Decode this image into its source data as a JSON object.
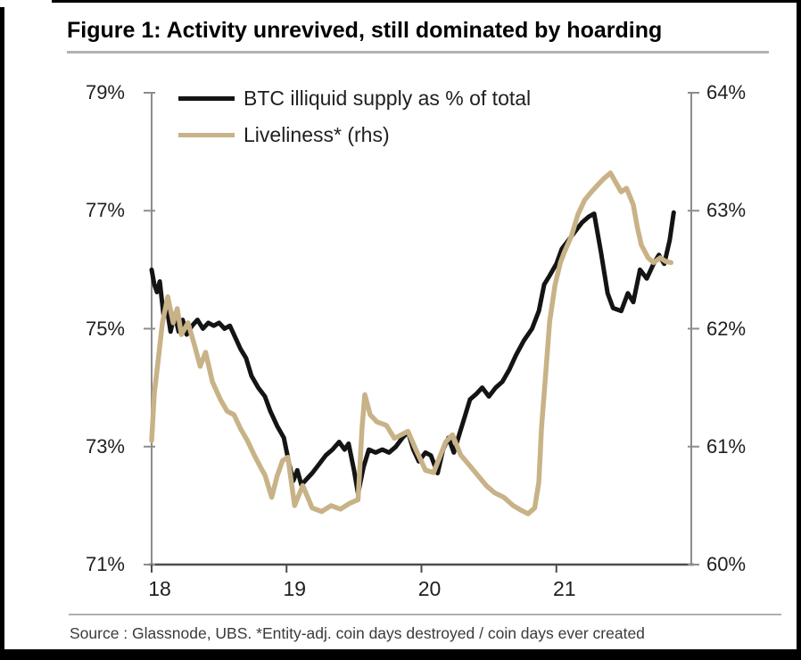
{
  "figure": {
    "title": "Figure 1: Activity unrevived, still dominated by hoarding",
    "source_note": "Source : Glassnode, UBS. *Entity-adj. coin days destroyed / coin days ever created"
  },
  "colors": {
    "series_illiquid": "#141414",
    "series_liveliness": "#c8b287",
    "axis": "#8c8c8c",
    "axis_bottom": "#4d4d4d",
    "text": "#1f1f1f"
  },
  "chart_data": {
    "type": "line",
    "title": "Figure 1: Activity unrevived, still dominated by hoarding",
    "xlabel": "",
    "ylabel_left": "BTC illiquid supply as % of total",
    "ylabel_right": "Liveliness* (rhs)",
    "xlim": [
      2018,
      2022
    ],
    "ylim_left": [
      71,
      79
    ],
    "ylim_right": [
      60,
      64
    ],
    "grid": false,
    "legend_position": "top-left",
    "x_axis": {
      "ticks": [
        {
          "label": "18",
          "value": 2018
        },
        {
          "label": "19",
          "value": 2019
        },
        {
          "label": "20",
          "value": 2020
        },
        {
          "label": "21",
          "value": 2021
        }
      ]
    },
    "y_axis_left": {
      "ticks": [
        {
          "label": "79%",
          "value": 79
        },
        {
          "label": "77%",
          "value": 77
        },
        {
          "label": "75%",
          "value": 75
        },
        {
          "label": "73%",
          "value": 73
        },
        {
          "label": "71%",
          "value": 71
        }
      ]
    },
    "y_axis_right": {
      "ticks": [
        {
          "label": "64%",
          "value": 64
        },
        {
          "label": "63%",
          "value": 63
        },
        {
          "label": "62%",
          "value": 62
        },
        {
          "label": "61%",
          "value": 61
        },
        {
          "label": "60%",
          "value": 60
        }
      ]
    },
    "series": [
      {
        "name": "BTC illiquid supply as % of total",
        "axis": "left",
        "color": "#141414",
        "points": [
          [
            2018.0,
            76.0
          ],
          [
            2018.02,
            75.75
          ],
          [
            2018.04,
            75.62
          ],
          [
            2018.06,
            75.8
          ],
          [
            2018.09,
            75.2
          ],
          [
            2018.11,
            75.4
          ],
          [
            2018.14,
            74.95
          ],
          [
            2018.17,
            75.25
          ],
          [
            2018.2,
            74.95
          ],
          [
            2018.23,
            75.15
          ],
          [
            2018.26,
            74.9
          ],
          [
            2018.3,
            75.05
          ],
          [
            2018.34,
            75.15
          ],
          [
            2018.38,
            75.0
          ],
          [
            2018.42,
            75.1
          ],
          [
            2018.46,
            75.05
          ],
          [
            2018.5,
            75.1
          ],
          [
            2018.54,
            75.0
          ],
          [
            2018.58,
            75.05
          ],
          [
            2018.62,
            74.85
          ],
          [
            2018.66,
            74.65
          ],
          [
            2018.7,
            74.5
          ],
          [
            2018.74,
            74.2
          ],
          [
            2018.79,
            74.0
          ],
          [
            2018.84,
            73.85
          ],
          [
            2018.88,
            73.6
          ],
          [
            2018.93,
            73.35
          ],
          [
            2018.98,
            73.15
          ],
          [
            2019.02,
            72.7
          ],
          [
            2019.05,
            72.42
          ],
          [
            2019.08,
            72.6
          ],
          [
            2019.11,
            72.35
          ],
          [
            2019.15,
            72.45
          ],
          [
            2019.19,
            72.55
          ],
          [
            2019.24,
            72.7
          ],
          [
            2019.29,
            72.85
          ],
          [
            2019.34,
            72.95
          ],
          [
            2019.39,
            73.08
          ],
          [
            2019.43,
            72.95
          ],
          [
            2019.46,
            73.05
          ],
          [
            2019.5,
            72.6
          ],
          [
            2019.53,
            72.2
          ],
          [
            2019.57,
            72.65
          ],
          [
            2019.61,
            72.95
          ],
          [
            2019.66,
            72.9
          ],
          [
            2019.71,
            72.95
          ],
          [
            2019.76,
            72.9
          ],
          [
            2019.81,
            73.0
          ],
          [
            2019.86,
            73.15
          ],
          [
            2019.9,
            73.25
          ],
          [
            2019.94,
            72.95
          ],
          [
            2019.98,
            72.75
          ],
          [
            2020.03,
            72.9
          ],
          [
            2020.07,
            72.85
          ],
          [
            2020.12,
            72.55
          ],
          [
            2020.16,
            72.95
          ],
          [
            2020.2,
            73.15
          ],
          [
            2020.24,
            72.9
          ],
          [
            2020.28,
            73.2
          ],
          [
            2020.32,
            73.5
          ],
          [
            2020.36,
            73.8
          ],
          [
            2020.41,
            73.9
          ],
          [
            2020.45,
            74.0
          ],
          [
            2020.5,
            73.85
          ],
          [
            2020.55,
            74.0
          ],
          [
            2020.6,
            74.1
          ],
          [
            2020.65,
            74.3
          ],
          [
            2020.7,
            74.55
          ],
          [
            2020.76,
            74.8
          ],
          [
            2020.82,
            75.0
          ],
          [
            2020.87,
            75.3
          ],
          [
            2020.91,
            75.75
          ],
          [
            2020.95,
            75.9
          ],
          [
            2021.0,
            76.1
          ],
          [
            2021.04,
            76.35
          ],
          [
            2021.09,
            76.5
          ],
          [
            2021.14,
            76.65
          ],
          [
            2021.19,
            76.8
          ],
          [
            2021.24,
            76.9
          ],
          [
            2021.28,
            76.95
          ],
          [
            2021.33,
            76.3
          ],
          [
            2021.38,
            75.6
          ],
          [
            2021.42,
            75.35
          ],
          [
            2021.48,
            75.3
          ],
          [
            2021.53,
            75.6
          ],
          [
            2021.57,
            75.45
          ],
          [
            2021.62,
            76.0
          ],
          [
            2021.67,
            75.85
          ],
          [
            2021.72,
            76.1
          ],
          [
            2021.76,
            76.25
          ],
          [
            2021.8,
            76.1
          ],
          [
            2021.84,
            76.5
          ],
          [
            2021.87,
            76.97
          ]
        ]
      },
      {
        "name": "Liveliness* (rhs)",
        "axis": "right",
        "color": "#c8b287",
        "points": [
          [
            2018.0,
            61.05
          ],
          [
            2018.02,
            61.45
          ],
          [
            2018.05,
            61.75
          ],
          [
            2018.08,
            62.05
          ],
          [
            2018.12,
            62.27
          ],
          [
            2018.16,
            62.05
          ],
          [
            2018.19,
            62.17
          ],
          [
            2018.22,
            61.95
          ],
          [
            2018.27,
            62.05
          ],
          [
            2018.32,
            61.85
          ],
          [
            2018.36,
            61.68
          ],
          [
            2018.4,
            61.8
          ],
          [
            2018.45,
            61.55
          ],
          [
            2018.51,
            61.4
          ],
          [
            2018.56,
            61.3
          ],
          [
            2018.61,
            61.27
          ],
          [
            2018.66,
            61.15
          ],
          [
            2018.71,
            61.05
          ],
          [
            2018.76,
            60.93
          ],
          [
            2018.81,
            60.82
          ],
          [
            2018.84,
            60.76
          ],
          [
            2018.89,
            60.57
          ],
          [
            2018.93,
            60.75
          ],
          [
            2018.97,
            60.88
          ],
          [
            2019.01,
            60.91
          ],
          [
            2019.06,
            60.5
          ],
          [
            2019.12,
            60.67
          ],
          [
            2019.19,
            60.48
          ],
          [
            2019.26,
            60.45
          ],
          [
            2019.33,
            60.5
          ],
          [
            2019.4,
            60.47
          ],
          [
            2019.47,
            60.52
          ],
          [
            2019.53,
            60.55
          ],
          [
            2019.56,
            61.16
          ],
          [
            2019.58,
            61.44
          ],
          [
            2019.62,
            61.27
          ],
          [
            2019.67,
            61.21
          ],
          [
            2019.74,
            61.18
          ],
          [
            2019.8,
            61.07
          ],
          [
            2019.85,
            61.1
          ],
          [
            2019.9,
            61.13
          ],
          [
            2019.96,
            60.97
          ],
          [
            2020.03,
            60.8
          ],
          [
            2020.09,
            60.78
          ],
          [
            2020.18,
            61.04
          ],
          [
            2020.23,
            61.1
          ],
          [
            2020.29,
            60.93
          ],
          [
            2020.35,
            60.85
          ],
          [
            2020.4,
            60.78
          ],
          [
            2020.48,
            60.67
          ],
          [
            2020.54,
            60.61
          ],
          [
            2020.61,
            60.57
          ],
          [
            2020.68,
            60.5
          ],
          [
            2020.74,
            60.46
          ],
          [
            2020.79,
            60.43
          ],
          [
            2020.84,
            60.48
          ],
          [
            2020.87,
            60.7
          ],
          [
            2020.89,
            61.16
          ],
          [
            2020.92,
            61.61
          ],
          [
            2020.95,
            62.06
          ],
          [
            2020.99,
            62.37
          ],
          [
            2021.03,
            62.56
          ],
          [
            2021.06,
            62.65
          ],
          [
            2021.11,
            62.78
          ],
          [
            2021.16,
            62.97
          ],
          [
            2021.21,
            63.09
          ],
          [
            2021.26,
            63.16
          ],
          [
            2021.3,
            63.21
          ],
          [
            2021.35,
            63.27
          ],
          [
            2021.4,
            63.32
          ],
          [
            2021.44,
            63.24
          ],
          [
            2021.48,
            63.16
          ],
          [
            2021.52,
            63.19
          ],
          [
            2021.57,
            63.05
          ],
          [
            2021.6,
            62.86
          ],
          [
            2021.63,
            62.71
          ],
          [
            2021.68,
            62.6
          ],
          [
            2021.72,
            62.56
          ],
          [
            2021.77,
            62.6
          ],
          [
            2021.81,
            62.57
          ],
          [
            2021.85,
            62.56
          ]
        ]
      }
    ]
  }
}
